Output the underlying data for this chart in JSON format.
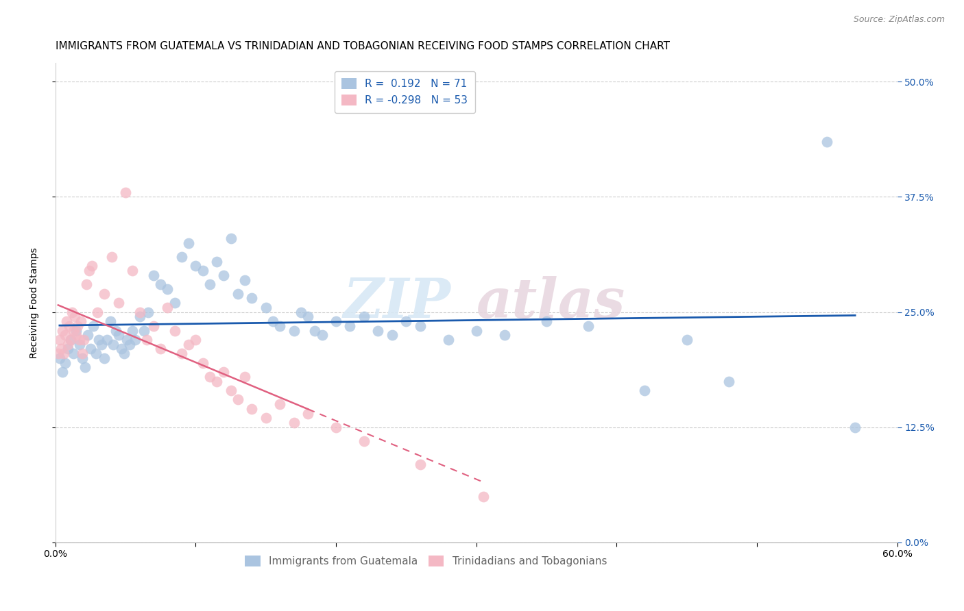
{
  "title": "IMMIGRANTS FROM GUATEMALA VS TRINIDADIAN AND TOBAGONIAN RECEIVING FOOD STAMPS CORRELATION CHART",
  "source": "Source: ZipAtlas.com",
  "ylabel": "Receiving Food Stamps",
  "ytick_values": [
    0.0,
    12.5,
    25.0,
    37.5,
    50.0
  ],
  "xlim": [
    0.0,
    60.0
  ],
  "ylim": [
    0.0,
    52.0
  ],
  "legend_blue_label": "Immigrants from Guatemala",
  "legend_pink_label": "Trinidadians and Tobagonians",
  "R_blue": 0.192,
  "N_blue": 71,
  "R_pink": -0.298,
  "N_pink": 53,
  "watermark_zip": "ZIP",
  "watermark_atlas": "atlas",
  "blue_color": "#aac4e0",
  "pink_color": "#f4b8c4",
  "blue_line_color": "#1a5aad",
  "pink_line_color": "#e06080",
  "background_color": "#ffffff",
  "grid_color": "#cccccc",
  "title_fontsize": 11,
  "axis_label_fontsize": 10,
  "tick_fontsize": 10,
  "marker_size": 130,
  "blue_scatter": [
    [
      0.3,
      20.0
    ],
    [
      0.5,
      18.5
    ],
    [
      0.7,
      19.5
    ],
    [
      0.9,
      21.0
    ],
    [
      1.1,
      22.0
    ],
    [
      1.3,
      20.5
    ],
    [
      1.5,
      23.0
    ],
    [
      1.7,
      21.5
    ],
    [
      1.9,
      20.0
    ],
    [
      2.1,
      19.0
    ],
    [
      2.3,
      22.5
    ],
    [
      2.5,
      21.0
    ],
    [
      2.7,
      23.5
    ],
    [
      2.9,
      20.5
    ],
    [
      3.1,
      22.0
    ],
    [
      3.3,
      21.5
    ],
    [
      3.5,
      20.0
    ],
    [
      3.7,
      22.0
    ],
    [
      3.9,
      24.0
    ],
    [
      4.1,
      21.5
    ],
    [
      4.3,
      23.0
    ],
    [
      4.5,
      22.5
    ],
    [
      4.7,
      21.0
    ],
    [
      4.9,
      20.5
    ],
    [
      5.1,
      22.0
    ],
    [
      5.3,
      21.5
    ],
    [
      5.5,
      23.0
    ],
    [
      5.7,
      22.0
    ],
    [
      6.0,
      24.5
    ],
    [
      6.3,
      23.0
    ],
    [
      6.6,
      25.0
    ],
    [
      7.0,
      29.0
    ],
    [
      7.5,
      28.0
    ],
    [
      8.0,
      27.5
    ],
    [
      8.5,
      26.0
    ],
    [
      9.0,
      31.0
    ],
    [
      9.5,
      32.5
    ],
    [
      10.0,
      30.0
    ],
    [
      10.5,
      29.5
    ],
    [
      11.0,
      28.0
    ],
    [
      11.5,
      30.5
    ],
    [
      12.0,
      29.0
    ],
    [
      12.5,
      33.0
    ],
    [
      13.0,
      27.0
    ],
    [
      13.5,
      28.5
    ],
    [
      14.0,
      26.5
    ],
    [
      15.0,
      25.5
    ],
    [
      15.5,
      24.0
    ],
    [
      16.0,
      23.5
    ],
    [
      17.0,
      23.0
    ],
    [
      17.5,
      25.0
    ],
    [
      18.0,
      24.5
    ],
    [
      18.5,
      23.0
    ],
    [
      19.0,
      22.5
    ],
    [
      20.0,
      24.0
    ],
    [
      21.0,
      23.5
    ],
    [
      22.0,
      24.5
    ],
    [
      23.0,
      23.0
    ],
    [
      24.0,
      22.5
    ],
    [
      25.0,
      24.0
    ],
    [
      26.0,
      23.5
    ],
    [
      28.0,
      22.0
    ],
    [
      30.0,
      23.0
    ],
    [
      32.0,
      22.5
    ],
    [
      35.0,
      24.0
    ],
    [
      38.0,
      23.5
    ],
    [
      42.0,
      16.5
    ],
    [
      45.0,
      22.0
    ],
    [
      48.0,
      17.5
    ],
    [
      55.0,
      43.5
    ],
    [
      57.0,
      12.5
    ]
  ],
  "pink_scatter": [
    [
      0.2,
      20.5
    ],
    [
      0.3,
      22.0
    ],
    [
      0.4,
      21.0
    ],
    [
      0.5,
      23.0
    ],
    [
      0.6,
      20.5
    ],
    [
      0.7,
      22.5
    ],
    [
      0.8,
      24.0
    ],
    [
      0.9,
      21.5
    ],
    [
      1.0,
      23.5
    ],
    [
      1.1,
      22.0
    ],
    [
      1.2,
      25.0
    ],
    [
      1.3,
      23.0
    ],
    [
      1.4,
      24.5
    ],
    [
      1.5,
      22.5
    ],
    [
      1.6,
      23.5
    ],
    [
      1.7,
      22.0
    ],
    [
      1.8,
      24.0
    ],
    [
      1.9,
      20.5
    ],
    [
      2.0,
      22.0
    ],
    [
      2.2,
      28.0
    ],
    [
      2.4,
      29.5
    ],
    [
      2.6,
      30.0
    ],
    [
      3.0,
      25.0
    ],
    [
      3.5,
      27.0
    ],
    [
      4.0,
      31.0
    ],
    [
      4.5,
      26.0
    ],
    [
      5.0,
      38.0
    ],
    [
      5.5,
      29.5
    ],
    [
      6.0,
      25.0
    ],
    [
      6.5,
      22.0
    ],
    [
      7.0,
      23.5
    ],
    [
      7.5,
      21.0
    ],
    [
      8.0,
      25.5
    ],
    [
      8.5,
      23.0
    ],
    [
      9.0,
      20.5
    ],
    [
      9.5,
      21.5
    ],
    [
      10.0,
      22.0
    ],
    [
      10.5,
      19.5
    ],
    [
      11.0,
      18.0
    ],
    [
      11.5,
      17.5
    ],
    [
      12.0,
      18.5
    ],
    [
      12.5,
      16.5
    ],
    [
      13.0,
      15.5
    ],
    [
      13.5,
      18.0
    ],
    [
      14.0,
      14.5
    ],
    [
      15.0,
      13.5
    ],
    [
      16.0,
      15.0
    ],
    [
      17.0,
      13.0
    ],
    [
      18.0,
      14.0
    ],
    [
      20.0,
      12.5
    ],
    [
      22.0,
      11.0
    ],
    [
      26.0,
      8.5
    ],
    [
      30.5,
      5.0
    ]
  ]
}
